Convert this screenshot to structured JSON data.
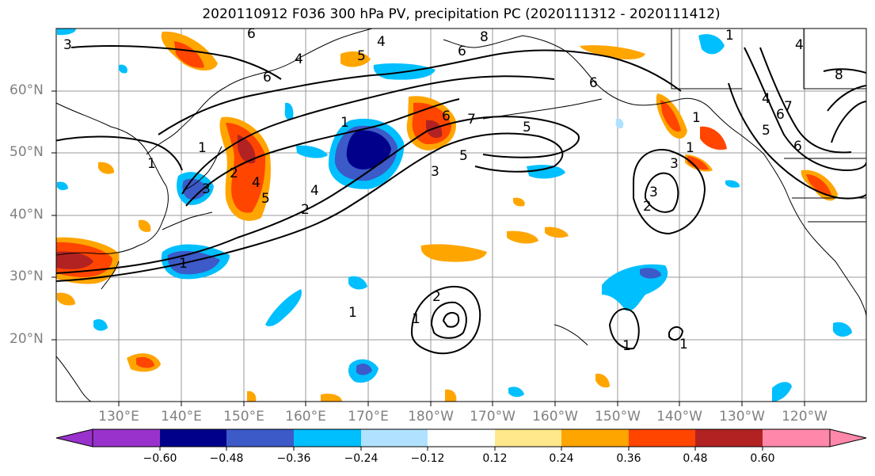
{
  "title": "2020110912 F036 300 hPa PV, precipitation PC (2020111312 - 2020111412)",
  "lat_labels": [
    "60°N",
    "50°N",
    "40°N",
    "30°N",
    "20°N"
  ],
  "lon_labels": [
    "130°E",
    "140°E",
    "150°E",
    "160°E",
    "170°E",
    "180°W",
    "170°W",
    "160°W",
    "150°W",
    "140°W",
    "130°W",
    "120°W"
  ],
  "colorbar": {
    "tick_labels": [
      "−0.60",
      "−0.48",
      "−0.36",
      "−0.24",
      "−0.12",
      "0.12",
      "0.24",
      "0.36",
      "0.48",
      "0.60"
    ],
    "colors": [
      "#9932cc",
      "#00008b",
      "#3c5ac8",
      "#00bfff",
      "#b0e2ff",
      "#ffffff",
      "#ffe88c",
      "#ffa500",
      "#ff4500",
      "#b22222",
      "#ff88aa"
    ]
  },
  "contour_labels": [
    "3",
    "6",
    "4",
    "8",
    "6",
    "5",
    "4",
    "6",
    "1",
    "1",
    "2",
    "4",
    "5",
    "3",
    "2",
    "1",
    "6",
    "7",
    "3",
    "5",
    "1",
    "3",
    "2",
    "1",
    "4",
    "5",
    "6",
    "7",
    "8",
    "1",
    "1",
    "1",
    "1",
    "2",
    "4",
    "6",
    "1",
    "4",
    "5",
    "6",
    "3",
    "1"
  ]
}
